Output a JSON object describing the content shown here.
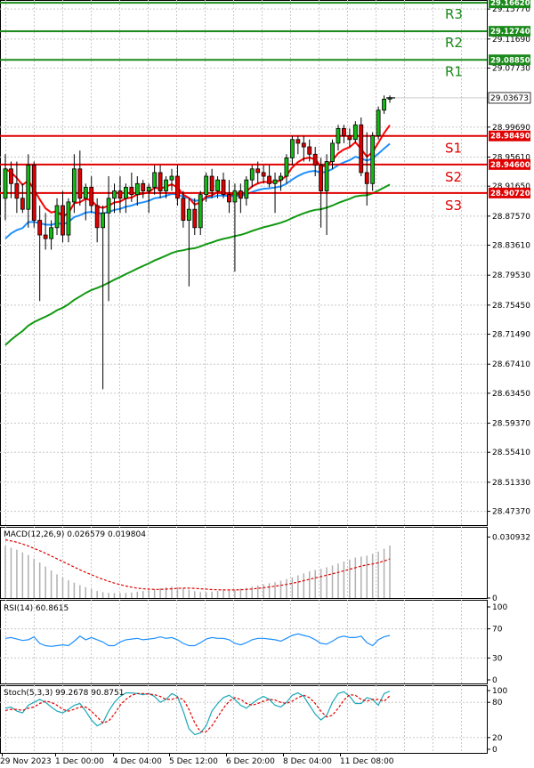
{
  "chart_data": {
    "type": "candlestick",
    "panels": {
      "price": {
        "ylim": [
          28.455,
          29.17
        ],
        "y_tick_labels": [
          "29.15770",
          "29.11690",
          "29.07730",
          "28.99690",
          "28.95610",
          "28.91650",
          "28.87570",
          "28.83610",
          "28.79530",
          "28.75450",
          "28.71490",
          "28.67410",
          "28.63450",
          "28.59370",
          "28.55410",
          "28.51330",
          "28.47370"
        ],
        "current_price": "29.03673",
        "levels": [
          {
            "name": "R3",
            "price": "29.16620",
            "color": "#1a8a1a"
          },
          {
            "name": "R2",
            "price": "29.12740",
            "color": "#1a8a1a"
          },
          {
            "name": "R1",
            "price": "29.08850",
            "color": "#1a8a1a"
          },
          {
            "name": "S1",
            "price": "28.98490",
            "color": "#e00000"
          },
          {
            "name": "S2",
            "price": "28.94600",
            "color": "#e00000"
          },
          {
            "name": "S3",
            "price": "28.90720",
            "color": "#e00000"
          }
        ],
        "ma_colors": {
          "fast": "#ff0000",
          "mid": "#1e90ff",
          "slow": "#119911"
        },
        "candles": [
          {
            "o": 28.9,
            "h": 28.96,
            "l": 28.87,
            "c": 28.94
          },
          {
            "o": 28.94,
            "h": 28.95,
            "l": 28.9,
            "c": 28.92
          },
          {
            "o": 28.92,
            "h": 28.95,
            "l": 28.88,
            "c": 28.9
          },
          {
            "o": 28.9,
            "h": 28.92,
            "l": 28.88,
            "c": 28.885
          },
          {
            "o": 28.885,
            "h": 28.96,
            "l": 28.86,
            "c": 28.945
          },
          {
            "o": 28.945,
            "h": 28.95,
            "l": 28.86,
            "c": 28.87
          },
          {
            "o": 28.87,
            "h": 28.89,
            "l": 28.76,
            "c": 28.85
          },
          {
            "o": 28.85,
            "h": 28.88,
            "l": 28.83,
            "c": 28.845
          },
          {
            "o": 28.845,
            "h": 28.87,
            "l": 28.83,
            "c": 28.86
          },
          {
            "o": 28.86,
            "h": 28.9,
            "l": 28.85,
            "c": 28.89
          },
          {
            "o": 28.89,
            "h": 28.91,
            "l": 28.84,
            "c": 28.85
          },
          {
            "o": 28.85,
            "h": 28.9,
            "l": 28.84,
            "c": 28.895
          },
          {
            "o": 28.895,
            "h": 28.96,
            "l": 28.88,
            "c": 28.94
          },
          {
            "o": 28.94,
            "h": 28.965,
            "l": 28.89,
            "c": 28.9
          },
          {
            "o": 28.9,
            "h": 28.92,
            "l": 28.87,
            "c": 28.915
          },
          {
            "o": 28.915,
            "h": 28.93,
            "l": 28.88,
            "c": 28.89
          },
          {
            "o": 28.89,
            "h": 28.9,
            "l": 28.84,
            "c": 28.86
          },
          {
            "o": 28.86,
            "h": 28.89,
            "l": 28.64,
            "c": 28.88
          },
          {
            "o": 28.88,
            "h": 28.93,
            "l": 28.76,
            "c": 28.9
          },
          {
            "o": 28.9,
            "h": 28.92,
            "l": 28.88,
            "c": 28.91
          },
          {
            "o": 28.91,
            "h": 28.93,
            "l": 28.88,
            "c": 28.9
          },
          {
            "o": 28.9,
            "h": 28.92,
            "l": 28.88,
            "c": 28.915
          },
          {
            "o": 28.915,
            "h": 28.935,
            "l": 28.895,
            "c": 28.905
          },
          {
            "o": 28.905,
            "h": 28.93,
            "l": 28.89,
            "c": 28.92
          },
          {
            "o": 28.92,
            "h": 28.925,
            "l": 28.9,
            "c": 28.91
          },
          {
            "o": 28.91,
            "h": 28.92,
            "l": 28.88,
            "c": 28.915
          },
          {
            "o": 28.915,
            "h": 28.945,
            "l": 28.905,
            "c": 28.935
          },
          {
            "o": 28.935,
            "h": 28.945,
            "l": 28.9,
            "c": 28.91
          },
          {
            "o": 28.91,
            "h": 28.93,
            "l": 28.9,
            "c": 28.925
          },
          {
            "o": 28.925,
            "h": 28.94,
            "l": 28.91,
            "c": 28.93
          },
          {
            "o": 28.93,
            "h": 28.945,
            "l": 28.89,
            "c": 28.9
          },
          {
            "o": 28.9,
            "h": 28.91,
            "l": 28.86,
            "c": 28.87
          },
          {
            "o": 28.87,
            "h": 28.9,
            "l": 28.78,
            "c": 28.885
          },
          {
            "o": 28.885,
            "h": 28.9,
            "l": 28.85,
            "c": 28.86
          },
          {
            "o": 28.86,
            "h": 28.91,
            "l": 28.85,
            "c": 28.905
          },
          {
            "o": 28.905,
            "h": 28.935,
            "l": 28.895,
            "c": 28.93
          },
          {
            "o": 28.93,
            "h": 28.94,
            "l": 28.9,
            "c": 28.91
          },
          {
            "o": 28.91,
            "h": 28.93,
            "l": 28.9,
            "c": 28.925
          },
          {
            "o": 28.925,
            "h": 28.935,
            "l": 28.9,
            "c": 28.905
          },
          {
            "o": 28.905,
            "h": 28.925,
            "l": 28.88,
            "c": 28.895
          },
          {
            "o": 28.895,
            "h": 28.92,
            "l": 28.8,
            "c": 28.91
          },
          {
            "o": 28.91,
            "h": 28.92,
            "l": 28.88,
            "c": 28.9
          },
          {
            "o": 28.9,
            "h": 28.93,
            "l": 28.89,
            "c": 28.925
          },
          {
            "o": 28.925,
            "h": 28.945,
            "l": 28.915,
            "c": 28.94
          },
          {
            "o": 28.94,
            "h": 28.95,
            "l": 28.92,
            "c": 28.935
          },
          {
            "o": 28.935,
            "h": 28.945,
            "l": 28.92,
            "c": 28.93
          },
          {
            "o": 28.93,
            "h": 28.945,
            "l": 28.915,
            "c": 28.92
          },
          {
            "o": 28.92,
            "h": 28.935,
            "l": 28.88,
            "c": 28.925
          },
          {
            "o": 28.925,
            "h": 28.935,
            "l": 28.91,
            "c": 28.93
          },
          {
            "o": 28.93,
            "h": 28.96,
            "l": 28.92,
            "c": 28.955
          },
          {
            "o": 28.955,
            "h": 28.985,
            "l": 28.945,
            "c": 28.98
          },
          {
            "o": 28.98,
            "h": 28.985,
            "l": 28.96,
            "c": 28.975
          },
          {
            "o": 28.975,
            "h": 28.985,
            "l": 28.95,
            "c": 28.97
          },
          {
            "o": 28.97,
            "h": 28.98,
            "l": 28.95,
            "c": 28.96
          },
          {
            "o": 28.96,
            "h": 28.97,
            "l": 28.93,
            "c": 28.945
          },
          {
            "o": 28.945,
            "h": 28.955,
            "l": 28.86,
            "c": 28.91
          },
          {
            "o": 28.91,
            "h": 28.96,
            "l": 28.85,
            "c": 28.95
          },
          {
            "o": 28.95,
            "h": 28.98,
            "l": 28.94,
            "c": 28.975
          },
          {
            "o": 28.975,
            "h": 29.0,
            "l": 28.965,
            "c": 28.995
          },
          {
            "o": 28.995,
            "h": 29.0,
            "l": 28.975,
            "c": 28.985
          },
          {
            "o": 28.985,
            "h": 28.995,
            "l": 28.97,
            "c": 28.98
          },
          {
            "o": 28.98,
            "h": 29.005,
            "l": 28.975,
            "c": 29.0
          },
          {
            "o": 29.0,
            "h": 29.01,
            "l": 28.93,
            "c": 28.935
          },
          {
            "o": 28.935,
            "h": 28.99,
            "l": 28.89,
            "c": 28.92
          },
          {
            "o": 28.92,
            "h": 28.99,
            "l": 28.91,
            "c": 28.985
          },
          {
            "o": 28.985,
            "h": 29.025,
            "l": 28.98,
            "c": 29.02
          },
          {
            "o": 29.02,
            "h": 29.04,
            "l": 29.015,
            "c": 29.035
          },
          {
            "o": 29.035,
            "h": 29.04,
            "l": 29.03,
            "c": 29.037
          }
        ]
      },
      "macd": {
        "label": "MACD(12,26,9) 0.026579 0.019804",
        "y_tick_labels": [
          "0.030932",
          "0"
        ],
        "ylim": [
          0,
          0.0325
        ],
        "histogram": [
          0.0265,
          0.0255,
          0.0245,
          0.0232,
          0.0218,
          0.02,
          0.018,
          0.016,
          0.014,
          0.012,
          0.0105,
          0.009,
          0.0078,
          0.0065,
          0.0055,
          0.0045,
          0.0036,
          0.003,
          0.0026,
          0.0025,
          0.0025,
          0.0026,
          0.0028,
          0.0032,
          0.0036,
          0.004,
          0.0045,
          0.005,
          0.0055,
          0.0058,
          0.0056,
          0.005,
          0.0042,
          0.0035,
          0.003,
          0.003,
          0.0033,
          0.0036,
          0.004,
          0.0042,
          0.0043,
          0.0048,
          0.0052,
          0.0058,
          0.0064,
          0.007,
          0.0075,
          0.008,
          0.0088,
          0.0096,
          0.0105,
          0.0115,
          0.0125,
          0.0135,
          0.0142,
          0.0148,
          0.0156,
          0.0165,
          0.0175,
          0.0185,
          0.0195,
          0.0205,
          0.021,
          0.0215,
          0.0225,
          0.0235,
          0.025,
          0.0266
        ],
        "signal": [
          0.0295,
          0.029,
          0.0283,
          0.0274,
          0.0264,
          0.0252,
          0.024,
          0.0227,
          0.0213,
          0.0199,
          0.0185,
          0.0171,
          0.0157,
          0.0143,
          0.013,
          0.0118,
          0.0106,
          0.0095,
          0.0085,
          0.0076,
          0.0068,
          0.0061,
          0.0055,
          0.005,
          0.0047,
          0.0045,
          0.0044,
          0.0044,
          0.0045,
          0.0047,
          0.0049,
          0.005,
          0.005,
          0.0049,
          0.0047,
          0.0045,
          0.0043,
          0.0042,
          0.0041,
          0.0041,
          0.0041,
          0.0042,
          0.0044,
          0.0046,
          0.0049,
          0.0052,
          0.0056,
          0.006,
          0.0064,
          0.0069,
          0.0075,
          0.0081,
          0.0088,
          0.0095,
          0.0102,
          0.0109,
          0.0116,
          0.0123,
          0.013,
          0.0138,
          0.0146,
          0.0154,
          0.0162,
          0.0168,
          0.0173,
          0.0179,
          0.0188,
          0.0198
        ]
      },
      "rsi": {
        "label": "RSI(14) 60.8615",
        "y_tick_labels": [
          "100",
          "70",
          "30",
          "0"
        ],
        "ylim": [
          0,
          100
        ],
        "values": [
          57,
          58,
          56,
          54,
          55,
          59,
          50,
          47,
          46,
          47,
          48,
          47,
          53,
          60,
          55,
          58,
          55,
          52,
          47,
          47,
          52,
          55,
          56,
          57,
          55,
          56,
          57,
          59,
          57,
          58,
          55,
          50,
          47,
          47,
          51,
          56,
          58,
          57,
          57,
          55,
          50,
          48,
          51,
          55,
          57,
          57,
          56,
          55,
          53,
          57,
          61,
          63,
          61,
          59,
          55,
          50,
          49,
          53,
          58,
          60,
          58,
          58,
          60,
          51,
          47,
          55,
          59,
          61
        ]
      },
      "stoch": {
        "label": "Stoch(5,3,3) 99.2678 90.8751",
        "y_tick_labels": [
          "100",
          "80",
          "20",
          "0"
        ],
        "ylim": [
          0,
          100
        ],
        "k": [
          70,
          72,
          65,
          62,
          75,
          80,
          85,
          80,
          72,
          65,
          62,
          68,
          75,
          78,
          65,
          50,
          40,
          45,
          65,
          80,
          90,
          96,
          96,
          95,
          93,
          95,
          90,
          80,
          85,
          95,
          90,
          65,
          35,
          25,
          28,
          40,
          65,
          78,
          88,
          92,
          85,
          75,
          70,
          78,
          85,
          90,
          85,
          75,
          72,
          80,
          92,
          96,
          90,
          75,
          60,
          50,
          58,
          80,
          95,
          98,
          90,
          78,
          78,
          88,
          85,
          75,
          95,
          99
        ],
        "d": [
          66,
          68,
          68,
          66,
          70,
          72,
          78,
          82,
          80,
          75,
          68,
          65,
          68,
          72,
          72,
          65,
          55,
          45,
          48,
          60,
          75,
          85,
          92,
          95,
          95,
          94,
          93,
          90,
          85,
          85,
          88,
          85,
          68,
          45,
          30,
          30,
          40,
          55,
          70,
          82,
          88,
          85,
          78,
          75,
          78,
          82,
          85,
          84,
          80,
          78,
          82,
          88,
          92,
          88,
          78,
          65,
          55,
          58,
          70,
          84,
          93,
          92,
          85,
          82,
          85,
          85,
          82,
          91
        ]
      }
    },
    "x_tick_labels": [
      "29 Nov 2023",
      "1 Dec 00:00",
      "4 Dec 04:00",
      "5 Dec 12:00",
      "6 Dec 20:00",
      "8 Dec 04:00",
      "11 Dec 08:00"
    ]
  }
}
